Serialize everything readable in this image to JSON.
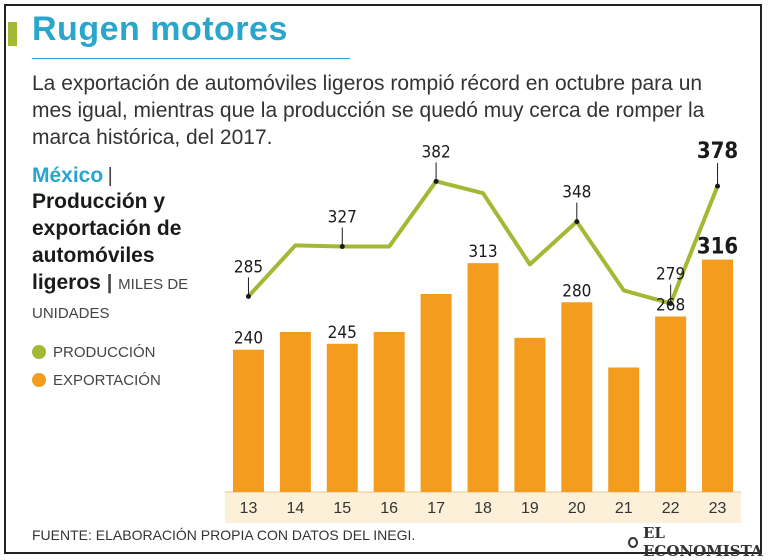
{
  "header": {
    "title": "Rugen motores",
    "subtitle": "La exportación de automóviles ligeros rompió récord en octubre para un mes igual, mientras que la producción se quedó muy cerca de romper la marca histórica, del 2017."
  },
  "sidebar": {
    "country": "México",
    "separator": "|",
    "chart_title_lines": [
      "Producción y",
      "exportación de",
      "automóviles",
      "ligeros"
    ],
    "units": "MILES DE UNIDADES"
  },
  "legend": {
    "production_label": "PRODUCCIÓN",
    "export_label": "EXPORTACIÓN"
  },
  "footer": {
    "source": "FUENTE: ELABORACIÓN PROPIA CON DATOS DEL INEGI.",
    "brand": "EL ECONOMISTA"
  },
  "colors": {
    "title": "#2aa5cc",
    "production": "#a3b833",
    "export": "#f39c1e",
    "axis_band": "#fdf0d8"
  },
  "chart_data": {
    "type": "bar",
    "categories": [
      "13",
      "14",
      "15",
      "16",
      "17",
      "18",
      "19",
      "20",
      "21",
      "22",
      "23"
    ],
    "series": [
      {
        "name": "EXPORTACIÓN",
        "type": "bar",
        "values": [
          240,
          255,
          245,
          255,
          287,
          313,
          250,
          280,
          225,
          268,
          316
        ],
        "labels": {
          "0": "240",
          "2": "245",
          "5": "313",
          "7": "280",
          "9": "268",
          "10": "316"
        }
      },
      {
        "name": "PRODUCCIÓN",
        "type": "line",
        "values": [
          285,
          328,
          327,
          327,
          382,
          372,
          312,
          348,
          290,
          279,
          378
        ],
        "labels": {
          "0": "285",
          "2": "327",
          "4": "382",
          "7": "348",
          "9": "279",
          "10": "378"
        }
      }
    ],
    "title": "Producción y exportación de automóviles ligeros",
    "ylabel": "MILES DE UNIDADES",
    "ylim": [
      120,
      400
    ],
    "legend": "left"
  }
}
